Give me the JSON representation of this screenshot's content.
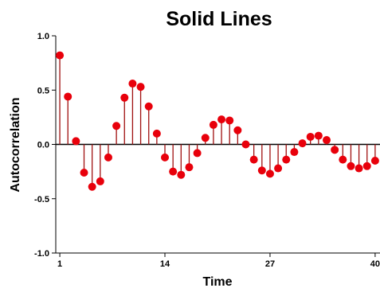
{
  "chart_data": {
    "type": "stem",
    "title": "Solid Lines",
    "xlabel": "Time",
    "ylabel": "Autocorrelation",
    "xlim": [
      0.5,
      40.7
    ],
    "ylim": [
      -1.0,
      1.0
    ],
    "x_ticks": [
      1,
      14,
      27,
      40
    ],
    "y_ticks": [
      -1.0,
      -0.5,
      0.0,
      0.5,
      1.0
    ],
    "y_tick_labels": [
      "-1.0",
      "-0.5",
      "0.0",
      "0.5",
      "1.0"
    ],
    "grid": false,
    "baseline": 0.0,
    "colors": {
      "marker": "#e8000b",
      "stem": "#a01010",
      "axis": "#000000"
    },
    "x": [
      1,
      2,
      3,
      4,
      5,
      6,
      7,
      8,
      9,
      10,
      11,
      12,
      13,
      14,
      15,
      16,
      17,
      18,
      19,
      20,
      21,
      22,
      23,
      24,
      25,
      26,
      27,
      28,
      29,
      30,
      31,
      32,
      33,
      34,
      35,
      36,
      37,
      38,
      39,
      40
    ],
    "values": [
      0.82,
      0.44,
      0.03,
      -0.26,
      -0.39,
      -0.34,
      -0.12,
      0.17,
      0.43,
      0.56,
      0.53,
      0.35,
      0.1,
      -0.12,
      -0.25,
      -0.28,
      -0.21,
      -0.08,
      0.06,
      0.18,
      0.23,
      0.22,
      0.13,
      0.0,
      -0.14,
      -0.24,
      -0.27,
      -0.22,
      -0.14,
      -0.07,
      0.01,
      0.07,
      0.08,
      0.04,
      -0.05,
      -0.14,
      -0.2,
      -0.22,
      -0.2,
      -0.15
    ]
  }
}
